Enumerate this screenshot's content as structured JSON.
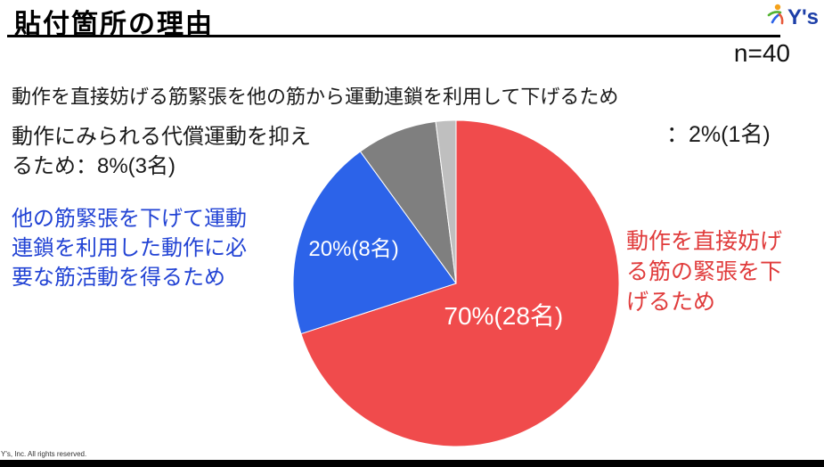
{
  "slide": {
    "title": "貼付箇所の理由",
    "sample_size": "n=40",
    "logo_text": "Y's",
    "footer": "Y's, Inc.  All rights reserved."
  },
  "colors": {
    "slice_red": "#F04B4C",
    "slice_blue": "#2C63E9",
    "slice_dark_gray": "#7F7F7F",
    "slice_light_gray": "#BFBFBF",
    "text_blue": "#2243D4",
    "text_red": "#E03B3B",
    "inner_label_white": "#FFFFFF"
  },
  "chart_data": {
    "type": "pie",
    "title": "貼付箇所の理由",
    "n": 40,
    "start_angle_deg": 0,
    "direction": "clockwise",
    "legend_position": "none",
    "slices": [
      {
        "label": "動作を直接妨げる筋の緊張を下げるため",
        "pct": 70,
        "count": 28,
        "color": "#F04B4C",
        "inner_label": "70%(28名)"
      },
      {
        "label": "他の筋緊張を下げて運動連鎖を利用した動作に必要な筋活動を得るため",
        "pct": 20,
        "count": 8,
        "color": "#2C63E9",
        "inner_label": "20%(8名)"
      },
      {
        "label": "動作にみられる代償運動を抑えるため",
        "pct": 8,
        "count": 3,
        "color": "#7F7F7F",
        "inner_label": ""
      },
      {
        "label": "動作を直接妨げる筋緊張を他の筋から運動連鎖を利用して下げるため",
        "pct": 2,
        "count": 1,
        "color": "#BFBFBF",
        "inner_label": ""
      }
    ]
  },
  "annotations": {
    "top_label_line": "動作を直接妨げる筋緊張を他の筋から運動連鎖を利用して下げるため",
    "top_label_value": "：2%(1名)",
    "gray_label": "動作にみられる代償運動を抑え\nるため：8%(3名)",
    "blue_label": "他の筋緊張を下げて運動\n連鎖を利用した動作に必\n要な筋活動を得るため",
    "red_label": "動作を直接妨げ\nる筋の緊張を下\nげるため"
  }
}
